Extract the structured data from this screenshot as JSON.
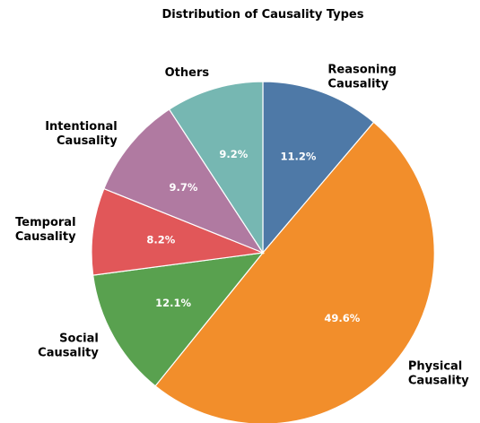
{
  "chart_data": {
    "type": "pie",
    "title": "Distribution of Causality Types",
    "start_angle_deg": 90,
    "direction": "clockwise",
    "slices": [
      {
        "label_lines": [
          "Reasoning",
          "Causality"
        ],
        "value": 11.2,
        "value_label": "11.2%",
        "color": "#4e79a7"
      },
      {
        "label_lines": [
          "Physical",
          "Causality"
        ],
        "value": 49.6,
        "value_label": "49.6%",
        "color": "#f28e2b"
      },
      {
        "label_lines": [
          "Social",
          "Causality"
        ],
        "value": 12.1,
        "value_label": "12.1%",
        "color": "#59a14f"
      },
      {
        "label_lines": [
          "Temporal",
          "Causality"
        ],
        "value": 8.2,
        "value_label": "8.2%",
        "color": "#e15759"
      },
      {
        "label_lines": [
          "Intentional",
          "Causality"
        ],
        "value": 9.7,
        "value_label": "9.7%",
        "color": "#b07aa1"
      },
      {
        "label_lines": [
          "Others"
        ],
        "value": 9.2,
        "value_label": "9.2%",
        "color": "#76b7b2"
      }
    ]
  }
}
